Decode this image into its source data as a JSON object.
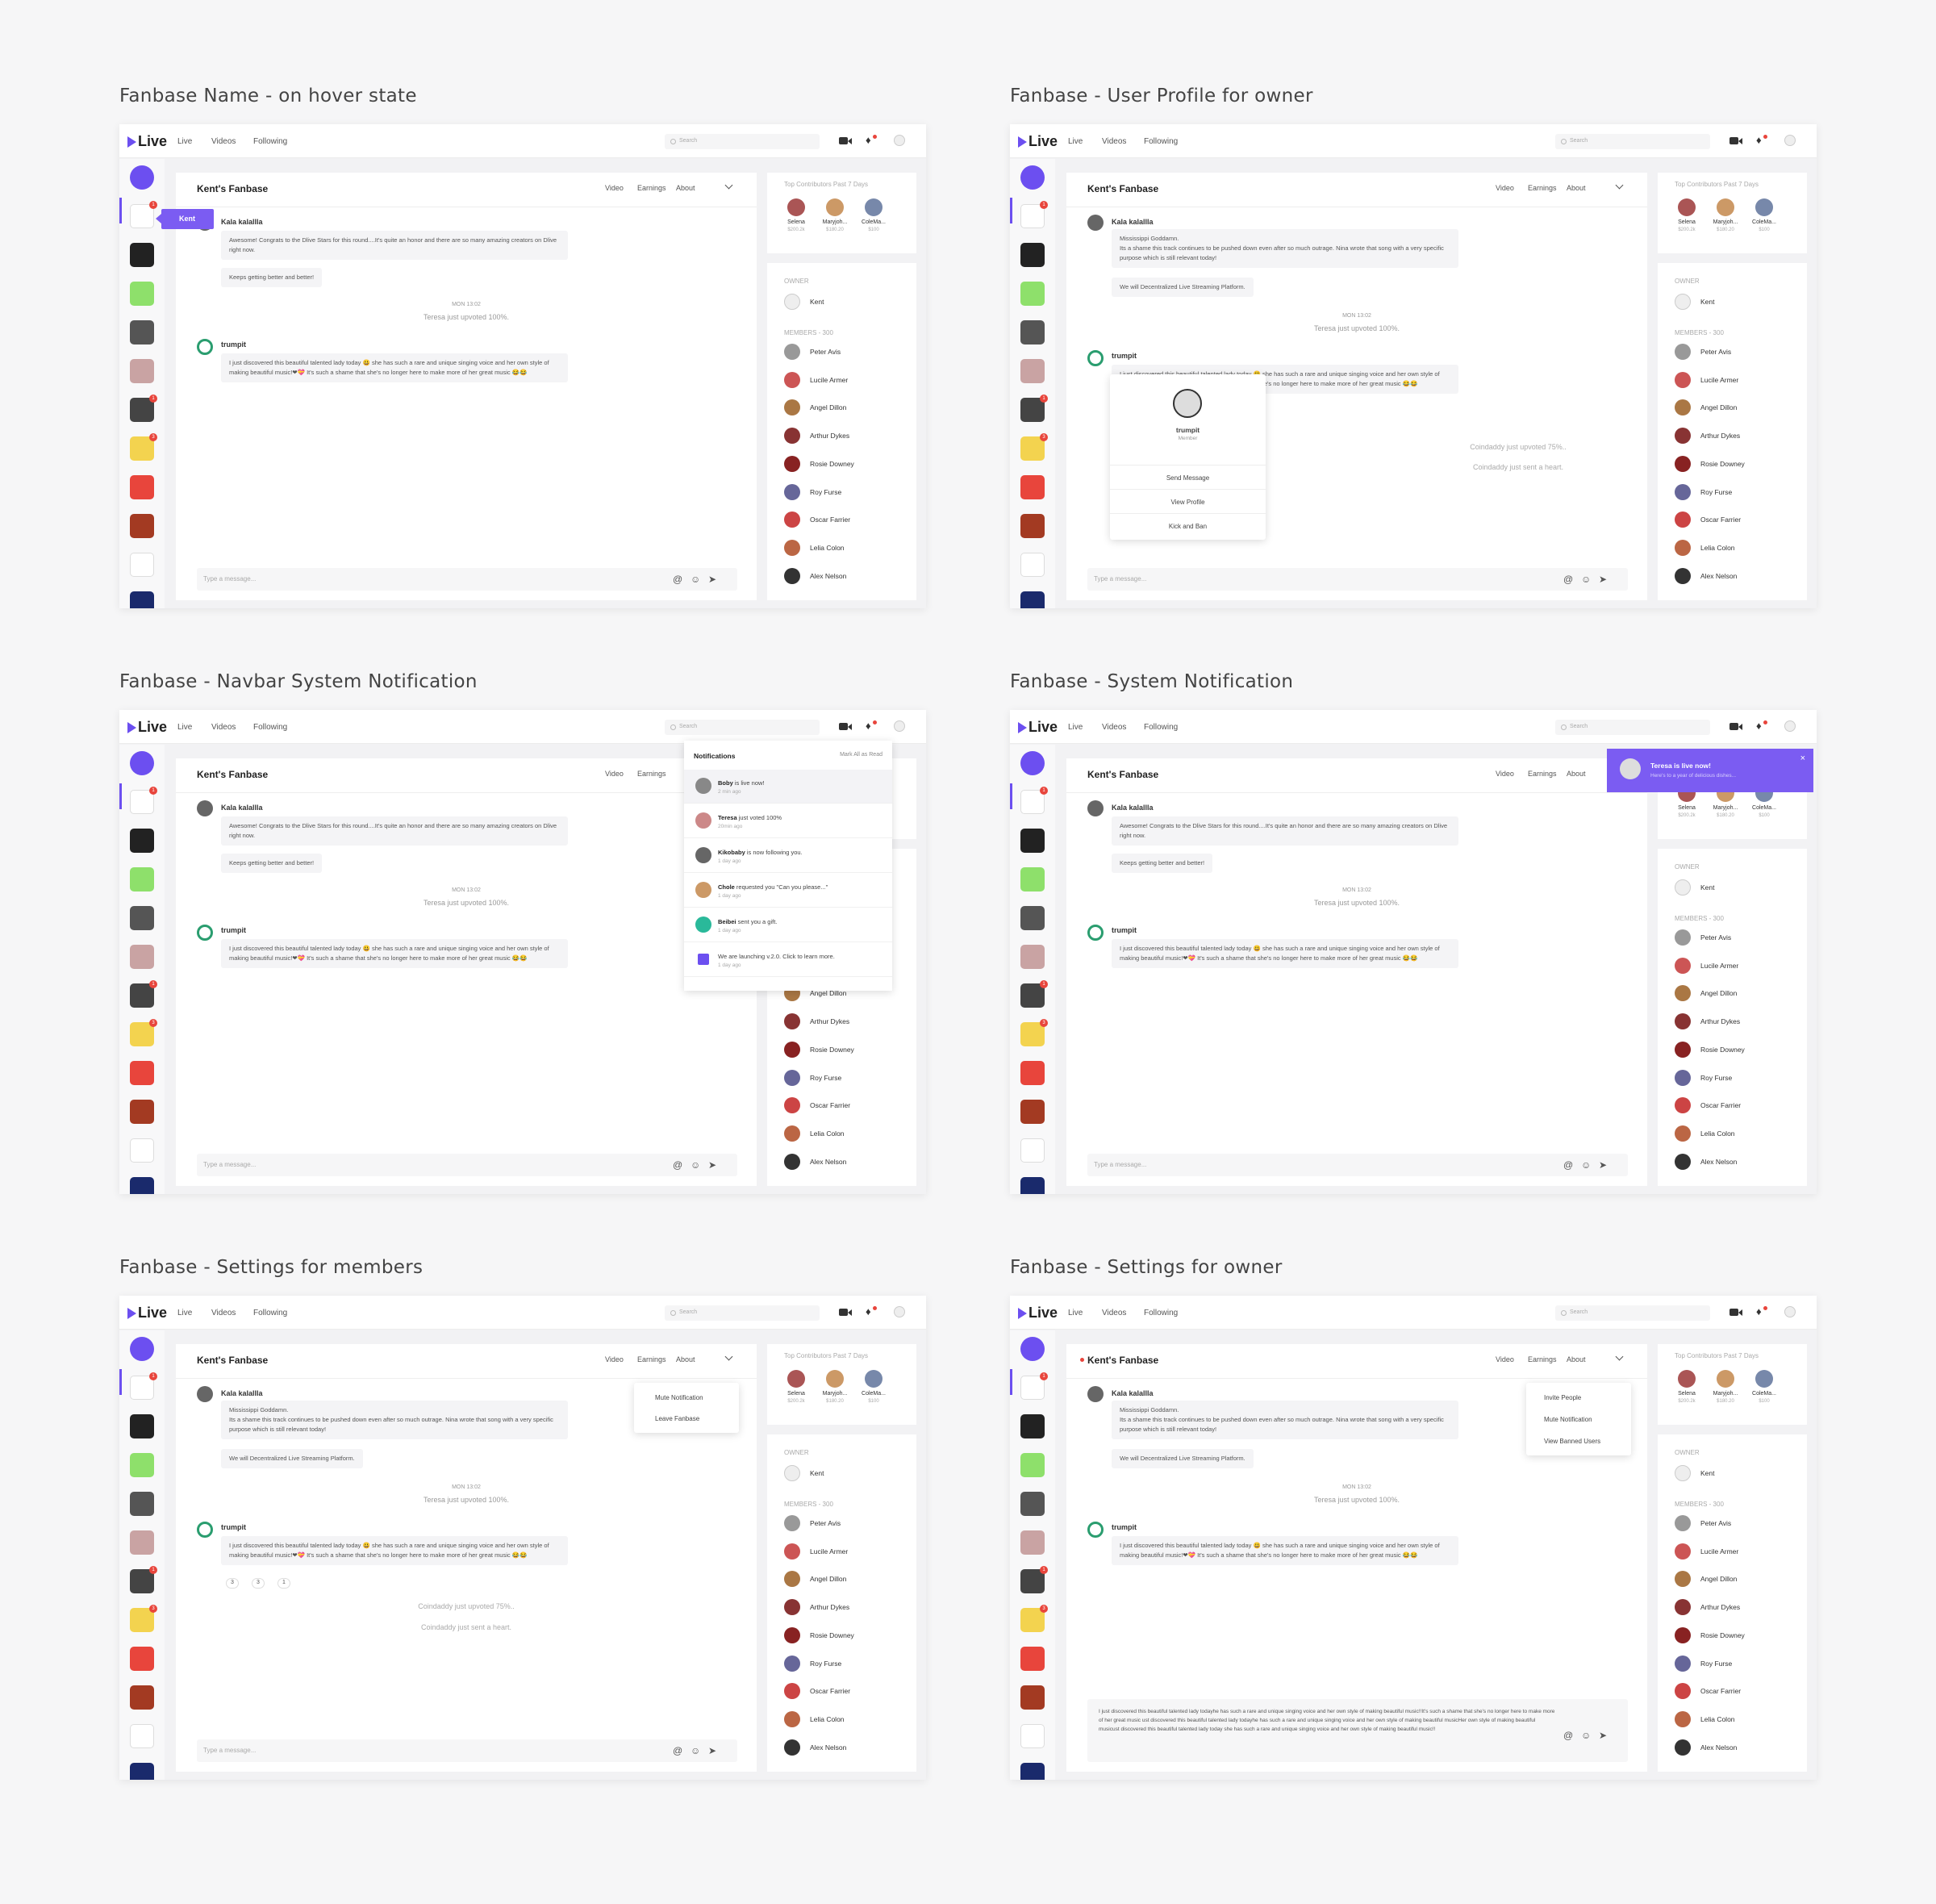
{
  "panel_titles": [
    "Fanbase Name - on hover state",
    "Fanbase - User Profile for owner",
    "Fanbase - Navbar System Notification",
    "Fanbase - System Notification",
    "Fanbase - Settings for members",
    "Fanbase - Settings for owner"
  ],
  "navbar": {
    "logo": "Live",
    "links": [
      "Live",
      "Videos",
      "Following"
    ],
    "search_placeholder": "Search"
  },
  "sidebar": {
    "badges": [
      "1",
      "1",
      "3"
    ]
  },
  "chat": {
    "title": "Kent's Fanbase",
    "tabs": [
      "Video",
      "Earnings",
      "About"
    ],
    "user1": "Kala kalallla",
    "msg_congrats": "Awesome! Congrats to the Dlive Stars for this round....It's quite an honor and there are so many amazing creators on Dlive right now.",
    "msg_keeps": "Keeps getting better and better!",
    "msg_mississippi": "Mississippi Goddamn.\nIts a shame this track continues to be pushed down even after so much outrage. Nina wrote that song with a very specific purpose which is still relevant today!",
    "msg_decentralized": "We will Decentralized Live Streaming Platform.",
    "time": "MON 13:02",
    "upvoted": "Teresa just upvoted 100%.",
    "user2": "trumpit",
    "msg_trumpit": "I just discovered this beautiful talented lady today 😃 she has such a rare and unique singing voice and her own style of making beautiful music!❤💝 It's such a shame that she's no longer here to make more of her great music 😂😂",
    "coindaddy_upvoted": "Coindaddy just upvoted 75%..",
    "coindaddy_heart": "Coindaddy just sent a heart.",
    "input_placeholder": "Type a message...",
    "long_input": "I just discovered this beautiful talented lady todayhe has such a rare and unique singing voice and her own style of making beautiful music!!It's such a shame that she's no longer here to make more of her great music ust discovered this beautiful talented lady todayhe has such a rare and unique singing voice and her own style of making beautiful musicHer own style of making beautiful musicust discovered this beautiful talented lady today she has such a rare and unique singing voice and her own style of making beautiful music!!",
    "reactions": [
      "3",
      "3",
      "1"
    ]
  },
  "right": {
    "top_label": "Top Contributors Past 7 Days",
    "contributors": [
      {
        "name": "Selena",
        "amount": "$200.2k"
      },
      {
        "name": "Maryjoh...",
        "amount": "$180.20"
      },
      {
        "name": "ColeMa...",
        "amount": "$100"
      }
    ],
    "owner_label": "OWNER",
    "owner": "Kent",
    "members_label": "MEMBERS - 300",
    "members": [
      "Peter Avis",
      "Lucile Armer",
      "Angel Dillon",
      "Arthur Dykes",
      "Rosie Downey",
      "Roy Furse",
      "Oscar Farrier",
      "Lelia Colon",
      "Alex Nelson"
    ]
  },
  "hover_tooltip": "Kent",
  "profile_card": {
    "name": "trumpit",
    "role": "Member",
    "actions": [
      "Send Message",
      "View Profile",
      "Kick and Ban"
    ]
  },
  "notifications": {
    "title": "Notifications",
    "mark_all": "Mark All as Read",
    "items": [
      {
        "who": "Boby",
        "text": " is live now!",
        "when": "2 min ago"
      },
      {
        "who": "Teresa",
        "text": " just voted 100%",
        "when": "20min ago"
      },
      {
        "who": "Kikobaby",
        "text": " is now following you.",
        "when": "1 day ago"
      },
      {
        "who": "Chole",
        "text": " requested you \"Can you please...\"",
        "when": "1 day ago"
      },
      {
        "who": "Beibei",
        "text": " sent you a gift.",
        "when": "1 day ago"
      },
      {
        "who": "",
        "text": "We are launching v.2.0. Click to learn more.",
        "when": "1 day ago"
      }
    ]
  },
  "toast": {
    "title": "Teresa is live now!",
    "sub": "Here's to a year of delicious dishes..."
  },
  "member_settings": [
    "Mute Notification",
    "Leave Fanbase"
  ],
  "owner_settings": [
    "Invite People",
    "Mute Notification",
    "View Banned Users"
  ],
  "colors": {
    "accent": "#7b5cf2",
    "badge": "#e8453c",
    "background": "#f6f6f7"
  },
  "icons": [
    "video-camera-icon",
    "bell-icon",
    "user-avatar-icon",
    "search-icon",
    "at-icon",
    "emoji-icon",
    "send-icon",
    "chevron-down-icon",
    "close-icon"
  ]
}
